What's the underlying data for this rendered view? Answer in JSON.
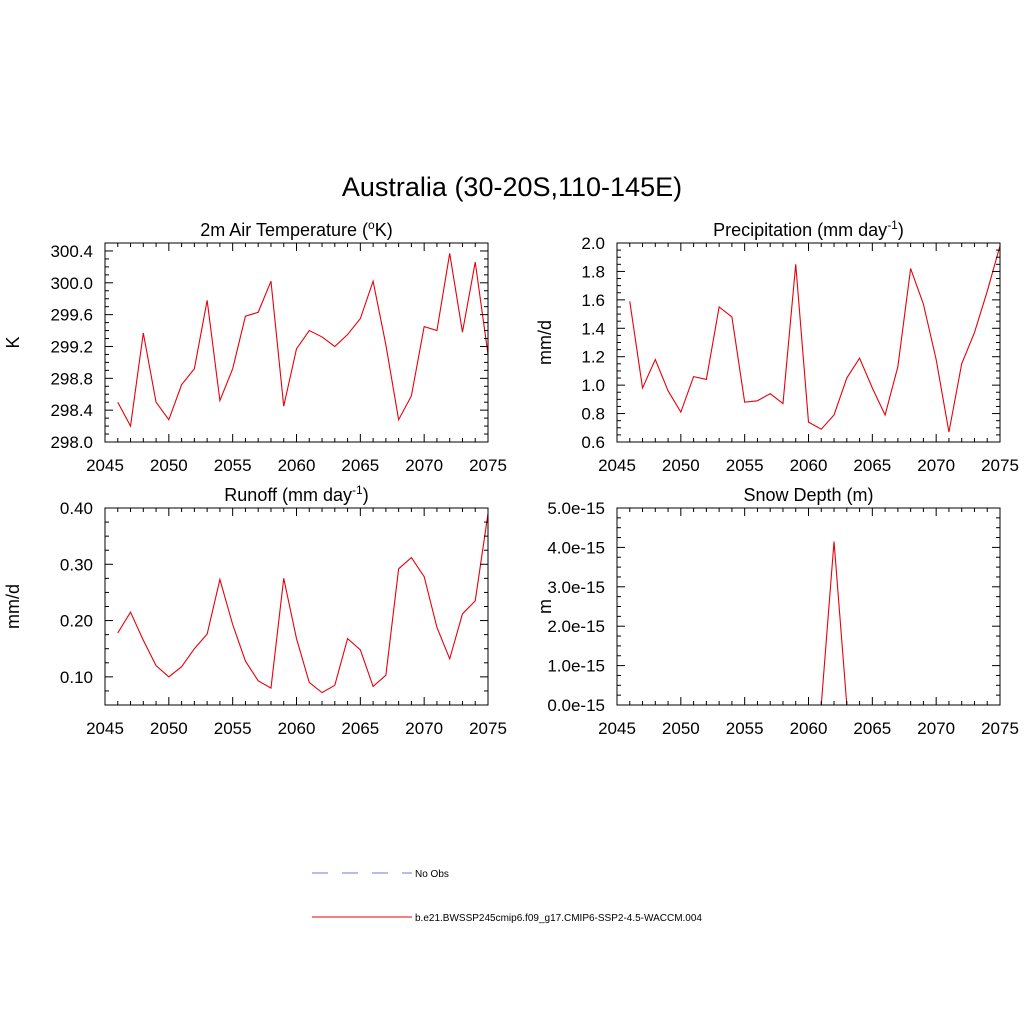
{
  "figure": {
    "title": "Australia (30-20S,110-145E)",
    "series_color": "#e8000b",
    "obs_color": "#9090e0",
    "legend": [
      {
        "label": "No Obs",
        "style": "dashed",
        "color": "#9090e0"
      },
      {
        "label": "b.e21.BWSSP245cmip6.f09_g17.CMIP6-SSP2-4.5-WACCM.004",
        "style": "solid",
        "color": "#e8000b"
      }
    ]
  },
  "chart_data": [
    {
      "type": "line",
      "title": "2m Air Temperature (",
      "title_sup": "o",
      "title_end": "K)",
      "ylabel": "K",
      "xlim": [
        2045,
        2075
      ],
      "ylim": [
        298.0,
        300.5
      ],
      "xticks": [
        2045,
        2050,
        2055,
        2060,
        2065,
        2070,
        2075
      ],
      "xtick_labels": [
        "2045",
        "2050",
        "2055",
        "2060",
        "2065",
        "2070",
        "2075"
      ],
      "yticks": [
        298.0,
        298.4,
        298.8,
        299.2,
        299.6,
        300.0,
        300.4
      ],
      "ytick_labels": [
        "298.0",
        "298.4",
        "298.8",
        "299.2",
        "299.6",
        "300.0",
        "300.4"
      ],
      "x": [
        2046,
        2047,
        2048,
        2049,
        2050,
        2051,
        2052,
        2053,
        2054,
        2055,
        2056,
        2057,
        2058,
        2059,
        2060,
        2061,
        2062,
        2063,
        2064,
        2065,
        2066,
        2067,
        2068,
        2069,
        2070,
        2071,
        2072,
        2073,
        2074,
        2075
      ],
      "values": [
        298.5,
        298.2,
        299.37,
        298.5,
        298.28,
        298.72,
        298.92,
        299.78,
        298.52,
        298.92,
        299.58,
        299.63,
        300.02,
        298.45,
        299.17,
        299.4,
        299.32,
        299.2,
        299.35,
        299.55,
        300.02,
        299.22,
        298.28,
        298.58,
        299.45,
        299.4,
        300.37,
        299.38,
        300.26,
        299.1
      ]
    },
    {
      "type": "line",
      "title": "Precipitation (mm day",
      "title_sup": "-1",
      "title_end": ")",
      "ylabel": "mm/d",
      "xlim": [
        2045,
        2075
      ],
      "ylim": [
        0.6,
        2.0
      ],
      "xticks": [
        2045,
        2050,
        2055,
        2060,
        2065,
        2070,
        2075
      ],
      "xtick_labels": [
        "2045",
        "2050",
        "2055",
        "2060",
        "2065",
        "2070",
        "2075"
      ],
      "yticks": [
        0.6,
        0.8,
        1.0,
        1.2,
        1.4,
        1.6,
        1.8,
        2.0
      ],
      "ytick_labels": [
        "0.6",
        "0.8",
        "1.0",
        "1.2",
        "1.4",
        "1.6",
        "1.8",
        "2.0"
      ],
      "x": [
        2046,
        2047,
        2048,
        2049,
        2050,
        2051,
        2052,
        2053,
        2054,
        2055,
        2056,
        2057,
        2058,
        2059,
        2060,
        2061,
        2062,
        2063,
        2064,
        2065,
        2066,
        2067,
        2068,
        2069,
        2070,
        2071,
        2072,
        2073,
        2074,
        2075
      ],
      "values": [
        1.59,
        0.98,
        1.18,
        0.96,
        0.81,
        1.06,
        1.04,
        1.55,
        1.48,
        0.88,
        0.89,
        0.94,
        0.87,
        1.85,
        0.74,
        0.69,
        0.79,
        1.05,
        1.19,
        0.98,
        0.79,
        1.13,
        1.82,
        1.57,
        1.18,
        0.67,
        1.15,
        1.37,
        1.66,
        1.98
      ]
    },
    {
      "type": "line",
      "title": "Runoff (mm day",
      "title_sup": "-1",
      "title_end": ")",
      "ylabel": "mm/d",
      "xlim": [
        2045,
        2075
      ],
      "ylim": [
        0.05,
        0.4
      ],
      "xticks": [
        2045,
        2050,
        2055,
        2060,
        2065,
        2070,
        2075
      ],
      "xtick_labels": [
        "2045",
        "2050",
        "2055",
        "2060",
        "2065",
        "2070",
        "2075"
      ],
      "yticks": [
        0.1,
        0.2,
        0.3,
        0.4
      ],
      "ytick_labels": [
        "0.10",
        "0.20",
        "0.30",
        "0.40"
      ],
      "x": [
        2046,
        2047,
        2048,
        2049,
        2050,
        2051,
        2052,
        2053,
        2054,
        2055,
        2056,
        2057,
        2058,
        2059,
        2060,
        2061,
        2062,
        2063,
        2064,
        2065,
        2066,
        2067,
        2068,
        2069,
        2070,
        2071,
        2072,
        2073,
        2074,
        2075
      ],
      "values": [
        0.178,
        0.215,
        0.165,
        0.12,
        0.1,
        0.118,
        0.15,
        0.176,
        0.273,
        0.193,
        0.128,
        0.093,
        0.08,
        0.275,
        0.168,
        0.09,
        0.072,
        0.085,
        0.168,
        0.148,
        0.083,
        0.103,
        0.292,
        0.312,
        0.278,
        0.188,
        0.132,
        0.212,
        0.235,
        0.39
      ]
    },
    {
      "type": "line",
      "title": "Snow Depth (m)",
      "title_sup": "",
      "title_end": "",
      "ylabel": "m",
      "xlim": [
        2045,
        2075
      ],
      "ylim": [
        0,
        5e-15
      ],
      "xticks": [
        2045,
        2050,
        2055,
        2060,
        2065,
        2070,
        2075
      ],
      "xtick_labels": [
        "2045",
        "2050",
        "2055",
        "2060",
        "2065",
        "2070",
        "2075"
      ],
      "yticks": [
        0,
        1e-15,
        2e-15,
        3e-15,
        4e-15,
        5e-15
      ],
      "ytick_labels": [
        "0.0e-15",
        "1.0e-15",
        "2.0e-15",
        "3.0e-15",
        "4.0e-15",
        "5.0e-15"
      ],
      "x": [
        2046,
        2047,
        2048,
        2049,
        2050,
        2051,
        2052,
        2053,
        2054,
        2055,
        2056,
        2057,
        2058,
        2059,
        2060,
        2061,
        2062,
        2063,
        2064,
        2065,
        2066,
        2067,
        2068,
        2069,
        2070,
        2071,
        2072,
        2073,
        2074,
        2075
      ],
      "values": [
        0,
        0,
        0,
        0,
        0,
        0,
        0,
        0,
        0,
        0,
        0,
        0,
        0,
        0,
        0,
        0,
        4.15e-15,
        0,
        0,
        0,
        0,
        0,
        0,
        0,
        0,
        0,
        0,
        0,
        0,
        0
      ]
    }
  ]
}
